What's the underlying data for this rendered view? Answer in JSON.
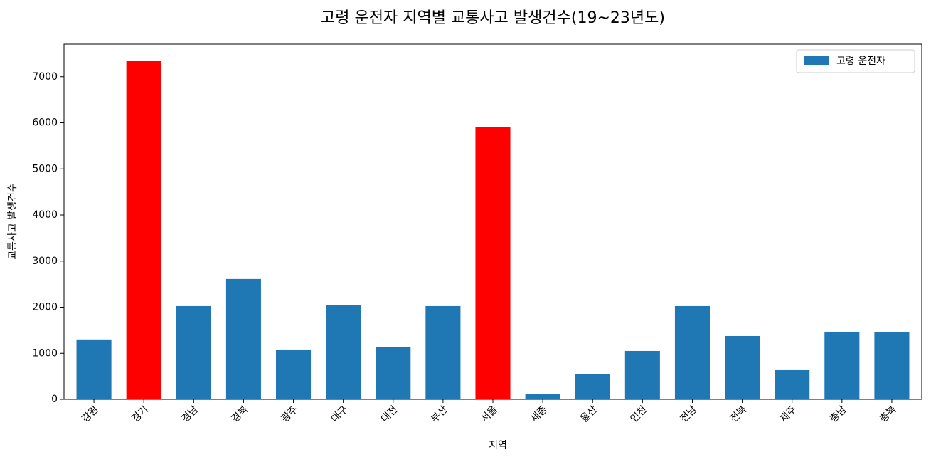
{
  "chart_data": {
    "type": "bar",
    "title": "고령 운전자 지역별 교통사고 발생건수(19~23년도)",
    "x_label": "지역",
    "y_label": "교통사고 발생건수",
    "categories": [
      "강원",
      "경기",
      "경남",
      "경북",
      "광주",
      "대구",
      "대전",
      "부산",
      "서울",
      "세종",
      "울산",
      "인천",
      "전남",
      "전북",
      "제주",
      "충남",
      "충북"
    ],
    "series": [
      {
        "name": "고령 운전자",
        "color": "#1f77b4",
        "colors": [
          "#1f77b4",
          "#ff0000",
          "#1f77b4",
          "#1f77b4",
          "#1f77b4",
          "#1f77b4",
          "#1f77b4",
          "#1f77b4",
          "#ff0000",
          "#1f77b4",
          "#1f77b4",
          "#1f77b4",
          "#1f77b4",
          "#1f77b4",
          "#1f77b4",
          "#1f77b4",
          "#1f77b4"
        ],
        "values": [
          1300,
          7340,
          2024,
          2612,
          1082,
          2040,
          1128,
          2024,
          5903,
          108,
          541,
          1051,
          2024,
          1375,
          634,
          1468,
          1453
        ]
      }
    ],
    "ylim": [
      0,
      7707
    ],
    "yticks": [
      0,
      1000,
      2000,
      3000,
      4000,
      5000,
      6000,
      7000
    ],
    "legend": "upper right"
  }
}
